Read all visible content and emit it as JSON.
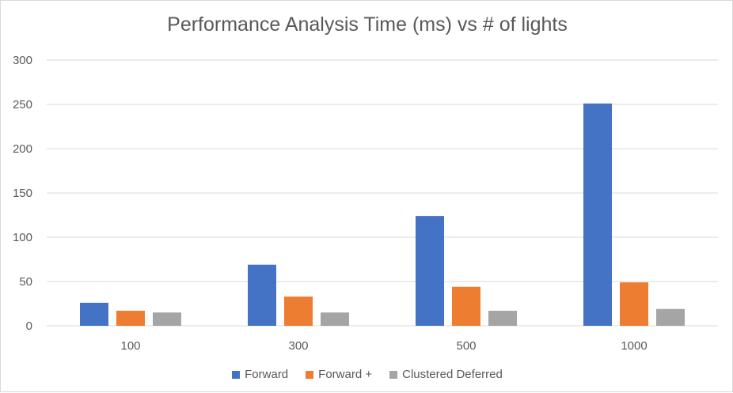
{
  "chart_data": {
    "type": "bar",
    "title": "Performance Analysis Time (ms) vs # of lights",
    "xlabel": "",
    "ylabel": "",
    "categories": [
      "100",
      "300",
      "500",
      "1000"
    ],
    "ylim": [
      0,
      300
    ],
    "yticks": [
      "0",
      "50",
      "100",
      "150",
      "200",
      "250",
      "300"
    ],
    "grid": true,
    "legend_position": "bottom",
    "series": [
      {
        "name": "Forward",
        "color": "#4472c4",
        "values": [
          26,
          69,
          124,
          251
        ]
      },
      {
        "name": "Forward +",
        "color": "#ed7d31",
        "values": [
          17,
          33,
          44,
          49
        ]
      },
      {
        "name": "Clustered Deferred",
        "color": "#a5a5a5",
        "values": [
          15,
          15,
          17,
          19
        ]
      }
    ]
  }
}
